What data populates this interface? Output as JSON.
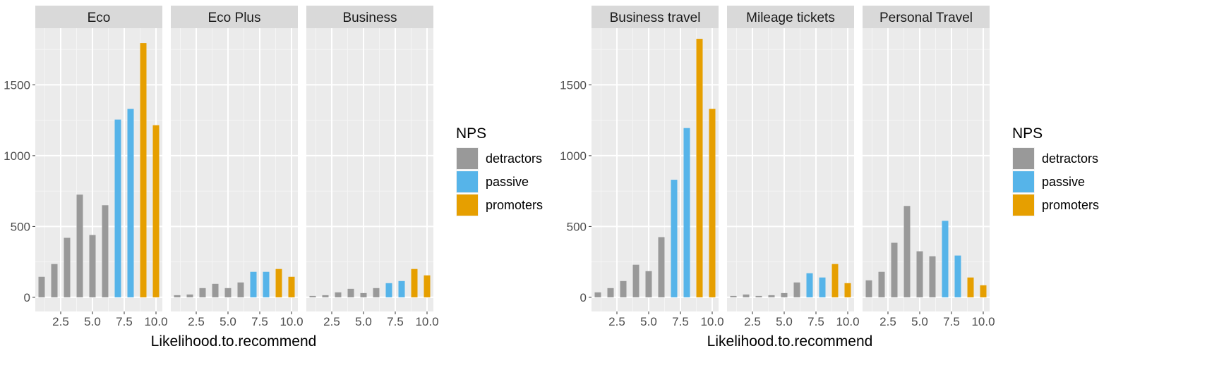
{
  "chart_data": [
    {
      "type": "bar",
      "xlabel": "Likelihood.to.recommend",
      "ylabel": "",
      "xlim": [
        0.5,
        10.5
      ],
      "ylim": [
        -100,
        1900
      ],
      "x_ticks": [
        "2.5",
        "5.0",
        "7.5",
        "10.0"
      ],
      "y_ticks": [
        "0",
        "500",
        "1000",
        "1500"
      ],
      "grid": true,
      "legend": {
        "title": "NPS",
        "position": "right",
        "entries": [
          "detractors",
          "passive",
          "promoters"
        ]
      },
      "colors": {
        "detractors": "#999999",
        "passive": "#56B4E9",
        "promoters": "#E69F00"
      },
      "facets": [
        {
          "label": "Eco",
          "x": [
            1,
            2,
            3,
            4,
            5,
            6,
            7,
            8,
            9,
            10
          ],
          "values": [
            145,
            235,
            420,
            725,
            440,
            650,
            1255,
            1330,
            1795,
            1215
          ],
          "groups": [
            "detractors",
            "detractors",
            "detractors",
            "detractors",
            "detractors",
            "detractors",
            "passive",
            "passive",
            "promoters",
            "promoters"
          ]
        },
        {
          "label": "Eco Plus",
          "x": [
            1,
            2,
            3,
            4,
            5,
            6,
            7,
            8,
            9,
            10
          ],
          "values": [
            15,
            20,
            65,
            95,
            65,
            105,
            180,
            180,
            200,
            145
          ],
          "groups": [
            "detractors",
            "detractors",
            "detractors",
            "detractors",
            "detractors",
            "detractors",
            "passive",
            "passive",
            "promoters",
            "promoters"
          ]
        },
        {
          "label": "Business",
          "x": [
            1,
            2,
            3,
            4,
            5,
            6,
            7,
            8,
            9,
            10
          ],
          "values": [
            10,
            15,
            35,
            60,
            30,
            65,
            100,
            115,
            200,
            155
          ],
          "groups": [
            "detractors",
            "detractors",
            "detractors",
            "detractors",
            "detractors",
            "detractors",
            "passive",
            "passive",
            "promoters",
            "promoters"
          ]
        }
      ]
    },
    {
      "type": "bar",
      "xlabel": "Likelihood.to.recommend",
      "ylabel": "",
      "xlim": [
        0.5,
        10.5
      ],
      "ylim": [
        -100,
        1900
      ],
      "x_ticks": [
        "2.5",
        "5.0",
        "7.5",
        "10.0"
      ],
      "y_ticks": [
        "0",
        "500",
        "1000",
        "1500"
      ],
      "grid": true,
      "legend": {
        "title": "NPS",
        "position": "right",
        "entries": [
          "detractors",
          "passive",
          "promoters"
        ]
      },
      "colors": {
        "detractors": "#999999",
        "passive": "#56B4E9",
        "promoters": "#E69F00"
      },
      "facets": [
        {
          "label": "Business travel",
          "x": [
            1,
            2,
            3,
            4,
            5,
            6,
            7,
            8,
            9,
            10
          ],
          "values": [
            35,
            65,
            115,
            230,
            185,
            425,
            830,
            1195,
            1825,
            1330
          ],
          "groups": [
            "detractors",
            "detractors",
            "detractors",
            "detractors",
            "detractors",
            "detractors",
            "passive",
            "passive",
            "promoters",
            "promoters"
          ]
        },
        {
          "label": "Mileage tickets",
          "x": [
            1,
            2,
            3,
            4,
            5,
            6,
            7,
            8,
            9,
            10
          ],
          "values": [
            10,
            20,
            10,
            15,
            30,
            105,
            170,
            140,
            235,
            100
          ],
          "groups": [
            "detractors",
            "detractors",
            "detractors",
            "detractors",
            "detractors",
            "detractors",
            "passive",
            "passive",
            "promoters",
            "promoters"
          ]
        },
        {
          "label": "Personal Travel",
          "x": [
            1,
            2,
            3,
            4,
            5,
            6,
            7,
            8,
            9,
            10
          ],
          "values": [
            120,
            180,
            385,
            645,
            325,
            290,
            540,
            295,
            140,
            85
          ],
          "groups": [
            "detractors",
            "detractors",
            "detractors",
            "detractors",
            "detractors",
            "detractors",
            "passive",
            "passive",
            "promoters",
            "promoters"
          ]
        }
      ]
    }
  ]
}
